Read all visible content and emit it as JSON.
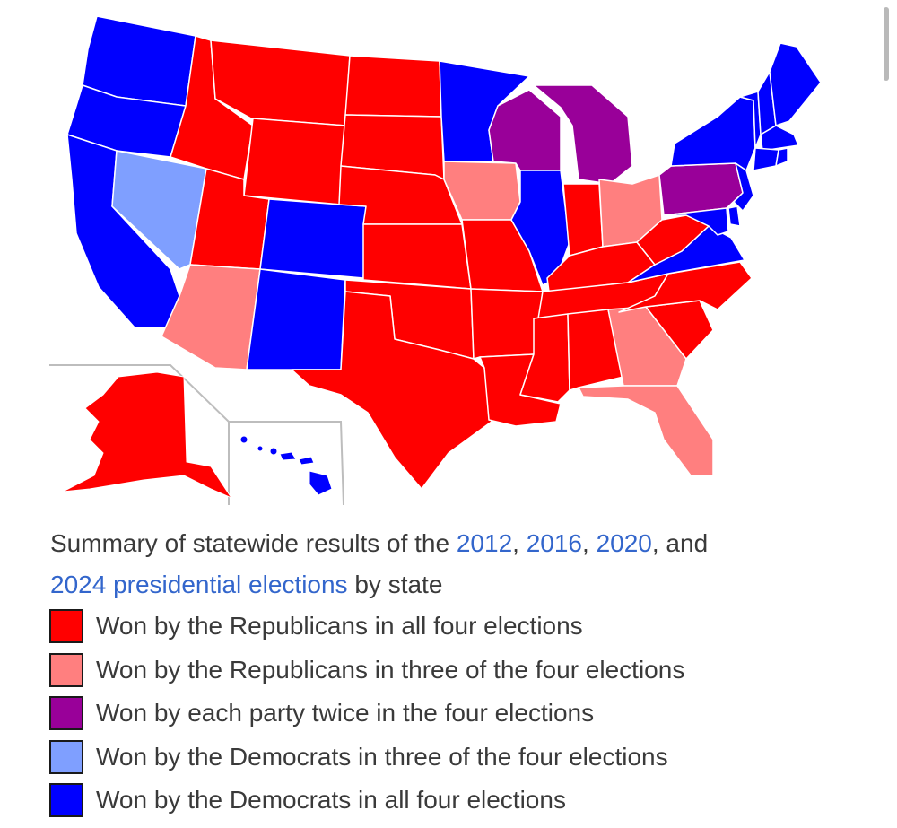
{
  "colors": {
    "rep_all": "#ff0000",
    "rep_three": "#ff7f7f",
    "split": "#990099",
    "dem_three": "#7f9fff",
    "dem_all": "#0000ff",
    "state_border": "#ffffff",
    "inset_frame": "#bdbdbd",
    "link": "#3366cc",
    "text": "#3a3a3a"
  },
  "map": {
    "states": [
      {
        "id": "WA",
        "category": "dem_all"
      },
      {
        "id": "OR",
        "category": "dem_all"
      },
      {
        "id": "CA",
        "category": "dem_all"
      },
      {
        "id": "NV",
        "category": "dem_three"
      },
      {
        "id": "ID",
        "category": "rep_all"
      },
      {
        "id": "MT",
        "category": "rep_all"
      },
      {
        "id": "WY",
        "category": "rep_all"
      },
      {
        "id": "UT",
        "category": "rep_all"
      },
      {
        "id": "AZ",
        "category": "rep_three"
      },
      {
        "id": "CO",
        "category": "dem_all"
      },
      {
        "id": "NM",
        "category": "dem_all"
      },
      {
        "id": "ND",
        "category": "rep_all"
      },
      {
        "id": "SD",
        "category": "rep_all"
      },
      {
        "id": "NE",
        "category": "rep_all"
      },
      {
        "id": "KS",
        "category": "rep_all"
      },
      {
        "id": "OK",
        "category": "rep_all"
      },
      {
        "id": "TX",
        "category": "rep_all"
      },
      {
        "id": "MN",
        "category": "dem_all"
      },
      {
        "id": "IA",
        "category": "rep_three"
      },
      {
        "id": "MO",
        "category": "rep_all"
      },
      {
        "id": "AR",
        "category": "rep_all"
      },
      {
        "id": "LA",
        "category": "rep_all"
      },
      {
        "id": "WI",
        "category": "split"
      },
      {
        "id": "IL",
        "category": "dem_all"
      },
      {
        "id": "MI",
        "category": "split"
      },
      {
        "id": "IN",
        "category": "rep_all"
      },
      {
        "id": "OH",
        "category": "rep_three"
      },
      {
        "id": "KY",
        "category": "rep_all"
      },
      {
        "id": "TN",
        "category": "rep_all"
      },
      {
        "id": "MS",
        "category": "rep_all"
      },
      {
        "id": "AL",
        "category": "rep_all"
      },
      {
        "id": "GA",
        "category": "rep_three"
      },
      {
        "id": "FL",
        "category": "rep_three"
      },
      {
        "id": "SC",
        "category": "rep_all"
      },
      {
        "id": "NC",
        "category": "rep_all"
      },
      {
        "id": "VA",
        "category": "dem_all"
      },
      {
        "id": "WV",
        "category": "rep_all"
      },
      {
        "id": "PA",
        "category": "split"
      },
      {
        "id": "NY",
        "category": "dem_all"
      },
      {
        "id": "VT",
        "category": "dem_all"
      },
      {
        "id": "NH",
        "category": "dem_all"
      },
      {
        "id": "ME",
        "category": "dem_all"
      },
      {
        "id": "MA",
        "category": "dem_all"
      },
      {
        "id": "CT",
        "category": "dem_all"
      },
      {
        "id": "RI",
        "category": "dem_all"
      },
      {
        "id": "NJ",
        "category": "dem_all"
      },
      {
        "id": "DE",
        "category": "dem_all"
      },
      {
        "id": "MD",
        "category": "dem_all"
      },
      {
        "id": "AK",
        "category": "rep_all"
      },
      {
        "id": "HI",
        "category": "dem_all"
      }
    ]
  },
  "caption": {
    "prefix": "Summary of statewide results of the ",
    "link_2012": "2012",
    "sep1": ", ",
    "link_2016": "2016",
    "sep2": ", ",
    "link_2020": "2020",
    "sep3": ", and ",
    "link_2024": "2024 presidential elections",
    "suffix": " by state"
  },
  "legend": [
    {
      "category": "rep_all",
      "label": "Won by the Republicans in all four elections"
    },
    {
      "category": "rep_three",
      "label": "Won by the Republicans in three of the four elections"
    },
    {
      "category": "split",
      "label": "Won by each party twice in the four elections"
    },
    {
      "category": "dem_three",
      "label": "Won by the Democrats in three of the four elections"
    },
    {
      "category": "dem_all",
      "label": "Won by the Democrats in all four elections"
    }
  ]
}
